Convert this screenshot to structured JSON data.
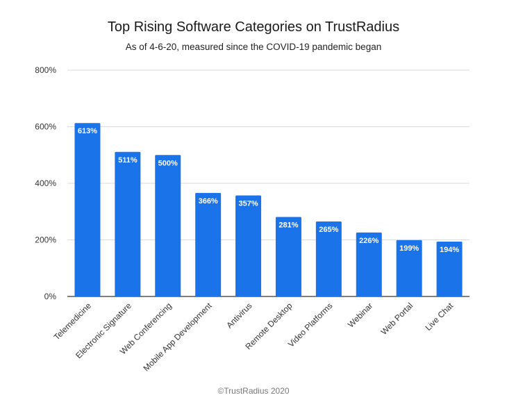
{
  "chart_data": {
    "type": "bar",
    "title": "Top Rising Software Categories on TrustRadius",
    "subtitle": "As of 4-6-20, measured since the COVID-19 pandemic began",
    "categories": [
      "Telemedicine",
      "Electronic Signature",
      "Web Conferencing",
      "Mobile App Development",
      "Antivirus",
      "Remote Desktop",
      "Video Platforms",
      "Webinar",
      "Web Portal",
      "Live Chat"
    ],
    "values": [
      613,
      511,
      500,
      366,
      357,
      281,
      265,
      226,
      199,
      194
    ],
    "data_labels": [
      "613%",
      "511%",
      "500%",
      "366%",
      "357%",
      "281%",
      "265%",
      "226%",
      "199%",
      "194%"
    ],
    "yticks": [
      0,
      200,
      400,
      600,
      800
    ],
    "ytick_labels": [
      "0%",
      "200%",
      "400%",
      "600%",
      "800%"
    ],
    "ylim": [
      0,
      800
    ],
    "xlabel": "",
    "ylabel": "",
    "grid": true,
    "bar_color": "#1a73e8",
    "label_color": "#ffffff",
    "grid_color": "#d9d9d9",
    "axis_color": "#333333"
  },
  "footer": "©TrustRadius 2020"
}
